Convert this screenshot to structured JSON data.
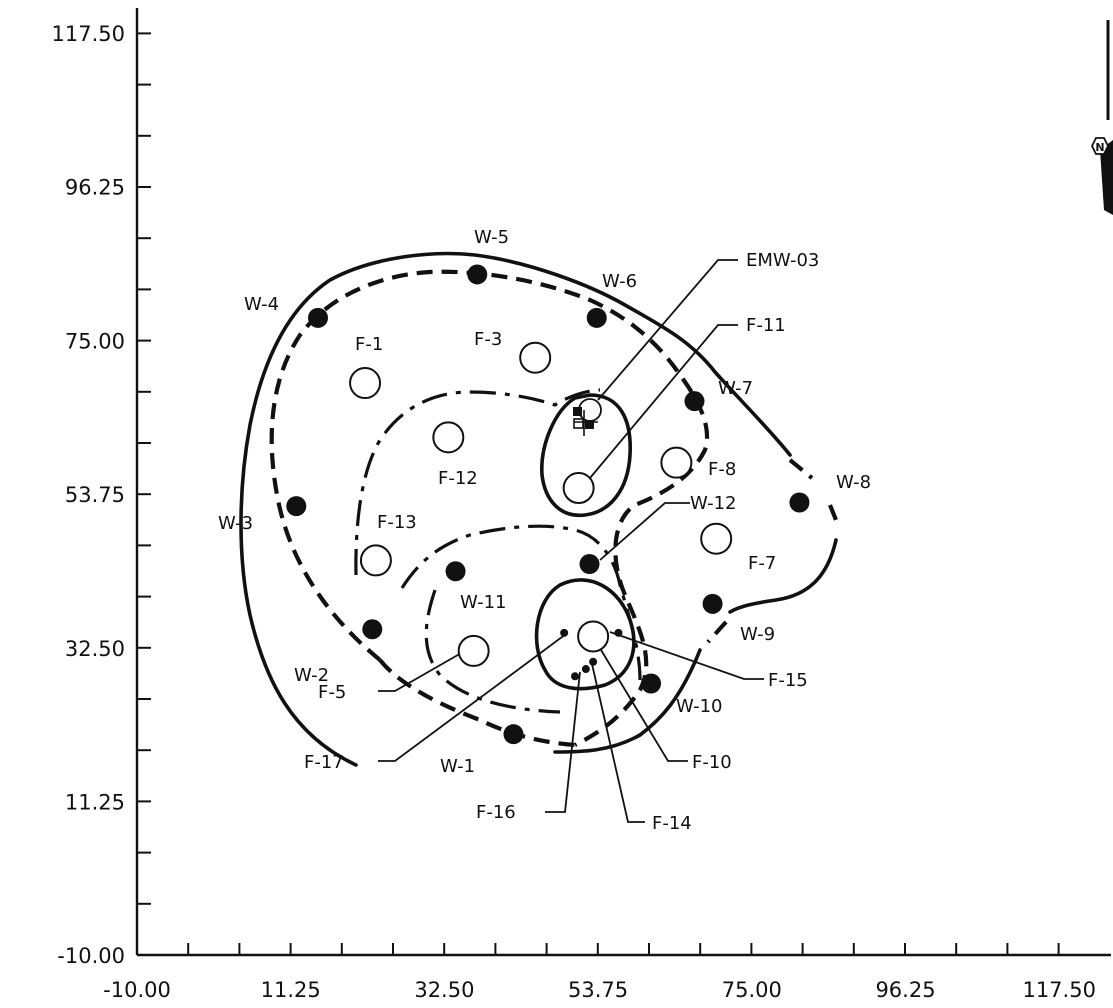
{
  "axes": {
    "x_ticks": [
      "-10.00",
      "11.25",
      "32.50",
      "53.75",
      "75.00",
      "96.25",
      "117.50"
    ],
    "y_ticks": [
      "117.50",
      "96.25",
      "75.00",
      "53.75",
      "32.50",
      "11.25",
      "-10.00"
    ]
  },
  "wells": [
    {
      "id": "W-1",
      "x": 42.0,
      "y": 20.5
    },
    {
      "id": "W-2",
      "x": 22.5,
      "y": 35.0
    },
    {
      "id": "W-3",
      "x": 12.0,
      "y": 52.0
    },
    {
      "id": "W-4",
      "x": 15.0,
      "y": 78.0
    },
    {
      "id": "W-5",
      "x": 37.0,
      "y": 84.0
    },
    {
      "id": "W-6",
      "x": 53.5,
      "y": 78.0
    },
    {
      "id": "W-7",
      "x": 67.0,
      "y": 66.5
    },
    {
      "id": "W-8",
      "x": 81.5,
      "y": 52.5
    },
    {
      "id": "W-9",
      "x": 69.5,
      "y": 38.5
    },
    {
      "id": "W-10",
      "x": 61.0,
      "y": 27.5
    },
    {
      "id": "W-11",
      "x": 34.0,
      "y": 43.0
    },
    {
      "id": "W-12",
      "x": 52.5,
      "y": 44.0
    }
  ],
  "features": [
    {
      "id": "F-1",
      "x": 21.5,
      "y": 69.0
    },
    {
      "id": "F-3",
      "x": 45.0,
      "y": 72.5
    },
    {
      "id": "F-5",
      "x": 36.5,
      "y": 32.0
    },
    {
      "id": "F-7",
      "x": 70.0,
      "y": 47.5
    },
    {
      "id": "F-8",
      "x": 64.5,
      "y": 58.0
    },
    {
      "id": "F-11",
      "x": 51.0,
      "y": 54.5
    },
    {
      "id": "F-12",
      "x": 33.0,
      "y": 61.5
    },
    {
      "id": "F-13",
      "x": 23.0,
      "y": 44.5
    },
    {
      "id": "F-15",
      "x": 53.0,
      "y": 34.0
    }
  ],
  "small_points": [
    {
      "id": "F-17",
      "x": 49.0,
      "y": 34.5
    },
    {
      "id": "F-15-pt",
      "x": 56.5,
      "y": 34.5
    },
    {
      "id": "F-10",
      "x": 53.0,
      "y": 30.5
    },
    {
      "id": "F-14",
      "x": 52.0,
      "y": 29.5
    },
    {
      "id": "F-16",
      "x": 50.5,
      "y": 28.5
    }
  ],
  "labels": {
    "W-1": "W-1",
    "W-2": "W-2",
    "W-3": "W-3",
    "W-4": "W-4",
    "W-5": "W-5",
    "W-6": "W-6",
    "W-7": "W-7",
    "W-8": "W-8",
    "W-9": "W-9",
    "W-10": "W-10",
    "W-11": "W-11",
    "W-12": "W-12",
    "F-1": "F-1",
    "F-3": "F-3",
    "F-5": "F-5",
    "F-7": "F-7",
    "F-8": "F-8",
    "F-10": "F-10",
    "F-11": "F-11",
    "F-12": "F-12",
    "F-13": "F-13",
    "F-14": "F-14",
    "F-15": "F-15",
    "F-16": "F-16",
    "F-17": "F-17",
    "EMW-03": "EMW-03"
  },
  "north_arrow": {
    "symbol": "N"
  }
}
